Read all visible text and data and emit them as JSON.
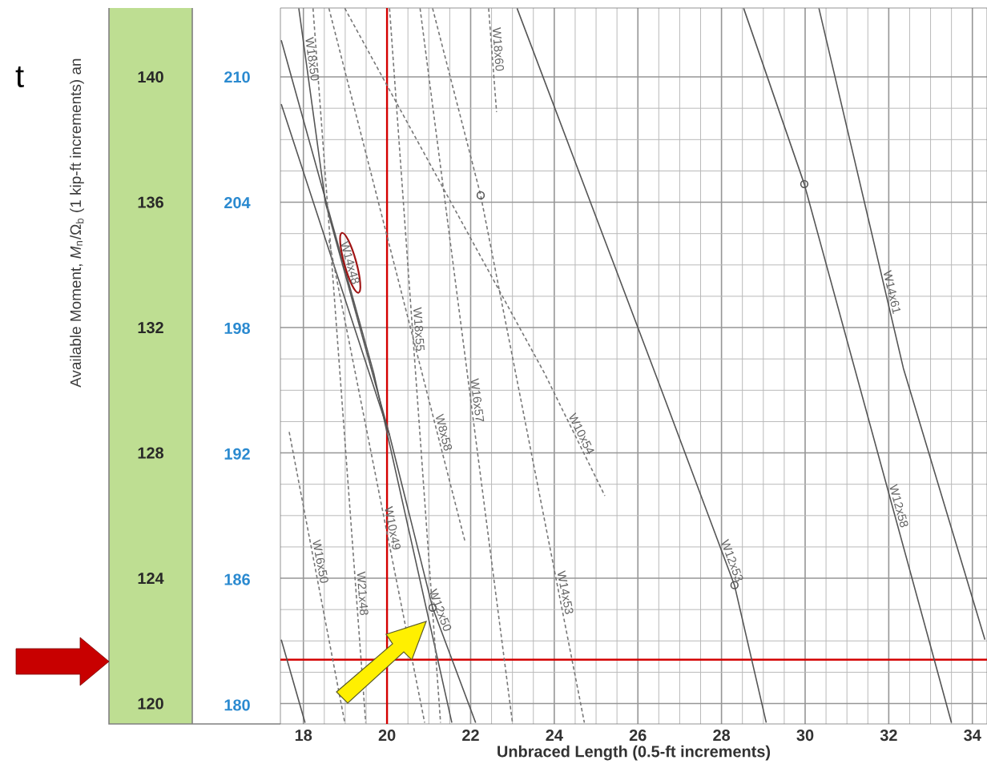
{
  "chart_data": {
    "type": "line",
    "xlabel": "Unbraced Length (0.5-ft increments)",
    "ylabel": "Available Moment, *M*$_{n}$/Ω$_{b}$ (1 kip-ft increments) an",
    "xlim": [
      17.45,
      34.35
    ],
    "ylim": [
      119.35,
      142.2
    ],
    "xticks": [
      18,
      20,
      22,
      24,
      26,
      28,
      30,
      32,
      34
    ],
    "yticks": [
      120,
      124,
      128,
      132,
      136,
      140
    ],
    "y2lim": [
      179.1,
      213.3
    ],
    "y2ticks": [
      180,
      186,
      192,
      198,
      204,
      210
    ],
    "grid": true,
    "annotations": [
      "t"
    ],
    "ref_lines": [
      {
        "axis": "x",
        "value": 20,
        "color": "#d40000"
      },
      {
        "axis": "y",
        "value": 121.4,
        "color": "#d40000"
      }
    ],
    "series": [
      {
        "name": "W18x50",
        "color": "#555555",
        "line_style": "solid",
        "x": [
          17.89,
          18.53,
          20.06
        ],
        "values": [
          142.19,
          135.97,
          128.57
        ]
      },
      {
        "name": "W14x48",
        "color": "#555555",
        "line_style": "solid",
        "x": [
          17.47,
          19.68,
          21.55
        ],
        "values": [
          141.17,
          130.56,
          119.39
        ]
      },
      {
        "name": "W12x50",
        "color": "#555555",
        "line_style": "solid",
        "x": [
          17.47,
          20.06,
          21.09,
          22.12
        ],
        "values": [
          139.13,
          128.57,
          123.06,
          119.39
        ]
      },
      {
        "name": "W21x48",
        "color": "#777777",
        "line_style": "dashed",
        "x": [
          18.23,
          19.49
        ],
        "values": [
          142.19,
          119.39
        ]
      },
      {
        "name": "W10x49",
        "color": "#777777",
        "line_style": "dashed",
        "x": [
          18.61,
          20.9
        ],
        "values": [
          134.8,
          119.39
        ]
      },
      {
        "name": "W16x50",
        "color": "#777777",
        "line_style": "dashed",
        "x": [
          17.66,
          18.99
        ],
        "values": [
          128.67,
          119.39
        ]
      },
      {
        "name": "W18x55",
        "color": "#777777",
        "line_style": "dashed",
        "x": [
          20.06,
          21.28
        ],
        "values": [
          142.19,
          119.39
        ]
      },
      {
        "name": "W16x57",
        "color": "#777777",
        "line_style": "dashed",
        "x": [
          20.79,
          23.0
        ],
        "values": [
          142.19,
          119.39
        ]
      },
      {
        "name": "W8x58",
        "color": "#777777",
        "line_style": "dashed",
        "x": [
          18.61,
          21.86
        ],
        "values": [
          142.19,
          125.2
        ]
      },
      {
        "name": "W10x54",
        "color": "#777777",
        "line_style": "dashed",
        "x": [
          18.99,
          23.76,
          25.21
        ],
        "values": [
          142.19,
          130.56,
          126.63
        ]
      },
      {
        "name": "W14x53",
        "color": "#777777",
        "line_style": "dashed",
        "x": [
          21.09,
          22.24,
          24.72
        ],
        "values": [
          142.19,
          136.22,
          119.39
        ]
      },
      {
        "name": "W18x60",
        "color": "#777777",
        "line_style": "dashed",
        "x": [
          22.43,
          22.62
        ],
        "values": [
          142.19,
          138.88
        ]
      },
      {
        "name": "W12x53",
        "color": "#555555",
        "line_style": "solid",
        "x": [
          23.11,
          26.51,
          28.31,
          29.07
        ],
        "values": [
          142.19,
          130.2,
          123.78,
          119.39
        ]
      },
      {
        "name": "W12x58",
        "color": "#555555",
        "line_style": "solid",
        "x": [
          28.53,
          29.98,
          33.5
        ],
        "values": [
          142.19,
          136.58,
          119.39
        ]
      },
      {
        "name": "W14x61",
        "color": "#555555",
        "line_style": "solid",
        "x": [
          30.33,
          32.35,
          34.3
        ],
        "values": [
          142.19,
          130.7,
          122.04
        ]
      },
      {
        "color": "#555555",
        "line_style": "solid",
        "x": [
          17.47,
          18.04
        ],
        "values": [
          122.04,
          119.39
        ]
      },
      {
        "type": "scatter",
        "marker": "circle",
        "color": "#555555",
        "x": [
          21.09,
          22.24,
          28.31,
          29.98
        ],
        "values": [
          123.06,
          136.22,
          123.78,
          136.58
        ]
      }
    ]
  }
}
